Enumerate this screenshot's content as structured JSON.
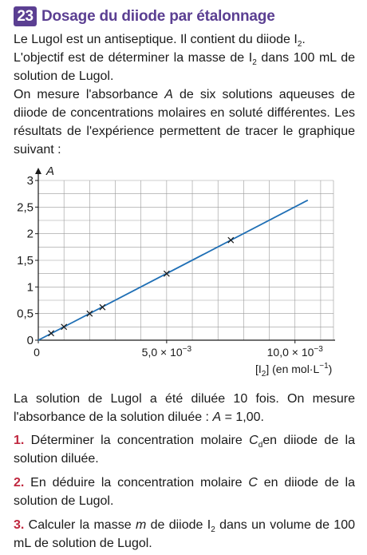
{
  "exercise": {
    "number": "23",
    "title": "Dosage du diiode par étalonnage",
    "title_color": "#5b3f92"
  },
  "intro": {
    "p1_text": "Le Lugol est un antiseptique. Il contient du diiode I",
    "p1_sub": "2",
    "p1_end": ".",
    "p2_text_a": "L'objectif est de déterminer la masse de I",
    "p2_sub": "2",
    "p2_text_b": " dans 100 mL de solution de Lugol.",
    "p3_text_a": "On mesure l'absorbance ",
    "p3_var": "A",
    "p3_text_b": " de six solutions aqueuses de diiode de concentrations molaires en soluté différentes. Les résultats de l'expérience permettent de tracer le graphique suivant :"
  },
  "chart_data": {
    "type": "scatter",
    "ylabel": "A",
    "xlabel": "[I2] (en mol·L−1)",
    "xlabel_main": "[I",
    "xlabel_sub": "2",
    "xlabel_rest": "] (en mol·L",
    "xlabel_sup": "−1",
    "xlabel_end": ")",
    "xlim": [
      0,
      0.0115
    ],
    "ylim": [
      0,
      3
    ],
    "y_ticks": [
      0,
      0.5,
      1,
      1.5,
      2,
      2.5,
      3
    ],
    "y_tick_labels": [
      "0",
      "0,5",
      "1",
      "1,5",
      "2",
      "2,5",
      "3"
    ],
    "x_tick_labels": [
      {
        "value": 0,
        "label": "0"
      },
      {
        "value": 0.005,
        "mant": "5,0 × 10",
        "exp": "−3"
      },
      {
        "value": 0.01,
        "mant": "10,0 × 10",
        "exp": "−3"
      }
    ],
    "grid": true,
    "points": [
      {
        "x": 0.0005,
        "y": 0.13
      },
      {
        "x": 0.001,
        "y": 0.25
      },
      {
        "x": 0.002,
        "y": 0.5
      },
      {
        "x": 0.0025,
        "y": 0.62
      },
      {
        "x": 0.005,
        "y": 1.25
      },
      {
        "x": 0.0075,
        "y": 1.88
      }
    ],
    "fit_line": {
      "x": [
        0,
        0.0105
      ],
      "y": [
        0,
        2.63
      ],
      "color": "#1f6fb5"
    }
  },
  "closing": {
    "text_a": "La solution de Lugol a été diluée 10 fois. On mesure l'absorbance de la solution diluée : ",
    "var": "A",
    "text_b": " = 1,00."
  },
  "questions": [
    {
      "num": "1.",
      "text_a": " Déterminer la concentration molaire ",
      "var": "C",
      "sub": "d",
      "text_b": "en diiode de la solution diluée."
    },
    {
      "num": "2.",
      "text_a": " En déduire la concentration molaire ",
      "var": "C",
      "sub": "",
      "text_b": " en diiode de la solution de Lugol."
    },
    {
      "num": "3.",
      "text_a": " Calculer la masse ",
      "var": "m",
      "sub_prefix": " de diiode I",
      "sub": "2",
      "text_b": " dans un volume de 100 mL de solution de Lugol."
    }
  ],
  "colors": {
    "question_number": "#c0283f",
    "line": "#1f6fb5",
    "grid": "#9a9a9a"
  }
}
